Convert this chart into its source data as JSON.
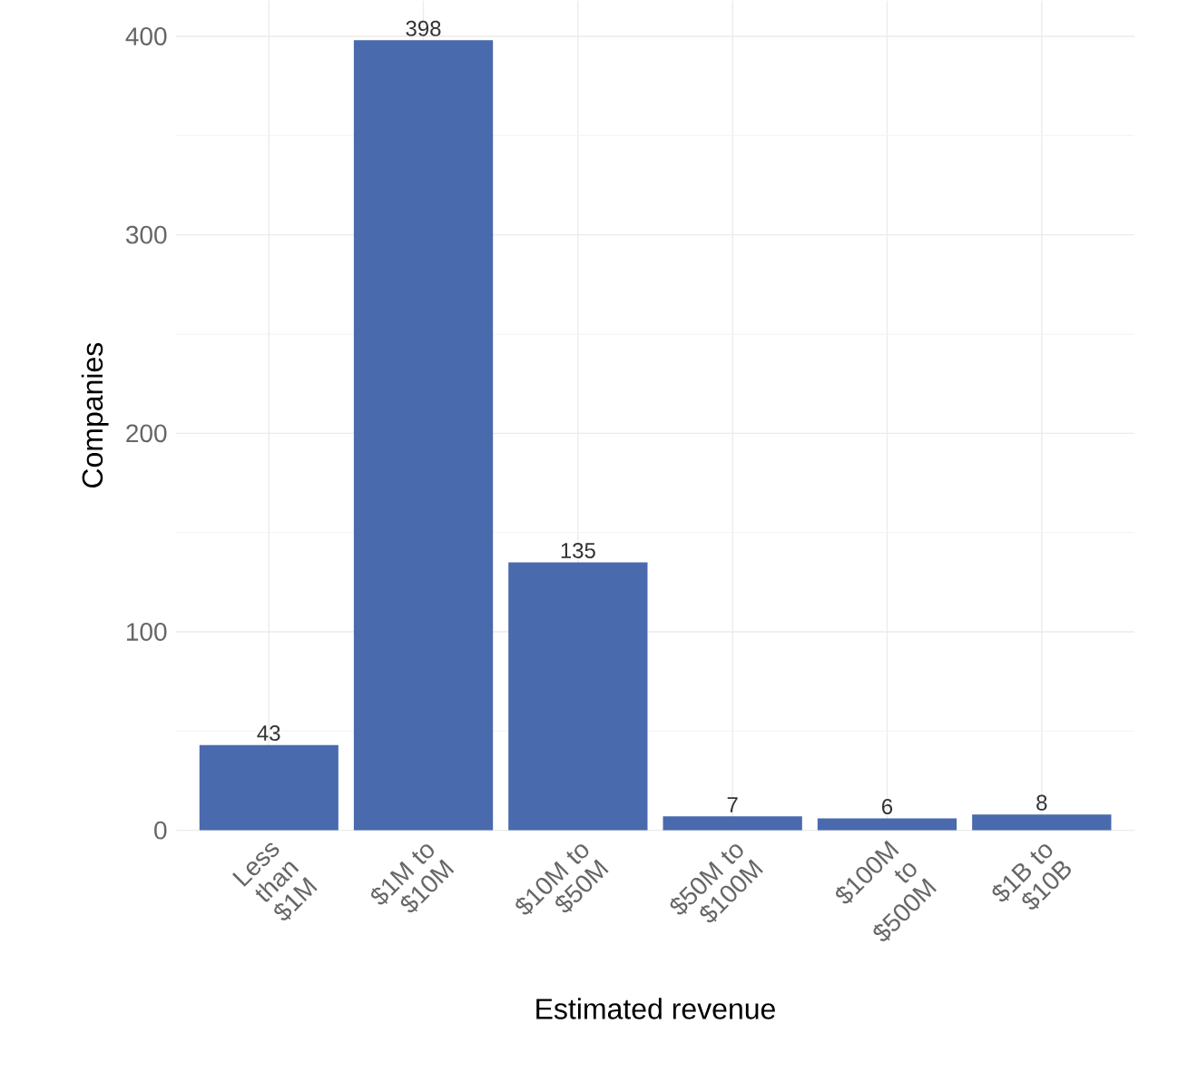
{
  "chart_data": {
    "type": "bar",
    "xlabel": "Estimated revenue",
    "ylabel": "Companies",
    "categories": [
      "Less than $1M",
      "$1M to $10M",
      "$10M to $50M",
      "$50M to $100M",
      "$100M to $500M",
      "$1B to $10B"
    ],
    "values": [
      43,
      398,
      135,
      7,
      6,
      8
    ],
    "color": "#4a6aae",
    "ylim": [
      0,
      418
    ],
    "yticks": [
      0,
      100,
      200,
      300,
      400
    ],
    "grid": true,
    "data_labels": true
  }
}
